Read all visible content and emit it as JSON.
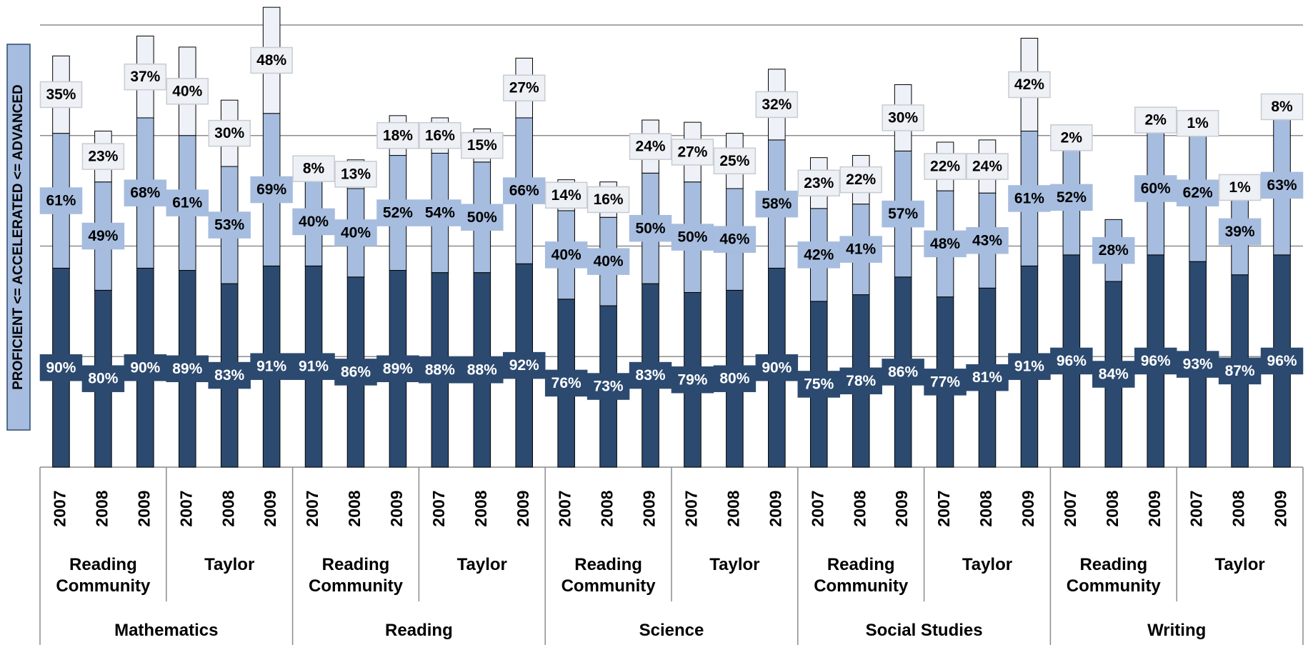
{
  "chart_data": {
    "type": "stacked_bar",
    "ylabel": "PROFICIENT <= ACCELERATED <= ADVANCED",
    "categories": [
      "2007",
      "2008",
      "2009",
      "2007",
      "2008",
      "2009",
      "2007",
      "2008",
      "2009",
      "2007",
      "2008",
      "2009",
      "2007",
      "2008",
      "2009",
      "2007",
      "2008",
      "2009",
      "2007",
      "2008",
      "2009",
      "2007",
      "2008",
      "2009",
      "2007",
      "2008",
      "2009",
      "2007",
      "2008",
      "2009"
    ],
    "school_groups": [
      "Reading Community",
      "Taylor",
      "Reading Community",
      "Taylor",
      "Reading Community",
      "Taylor",
      "Reading Community",
      "Taylor",
      "Reading Community",
      "Taylor"
    ],
    "subject_groups": [
      "Mathematics",
      "Reading",
      "Science",
      "Social Studies",
      "Writing"
    ],
    "series": [
      {
        "color": "#2c4a70",
        "values": [
          90,
          80,
          90,
          89,
          83,
          91,
          91,
          86,
          89,
          88,
          88,
          92,
          76,
          73,
          83,
          79,
          80,
          90,
          75,
          78,
          86,
          77,
          81,
          91,
          96,
          84,
          96,
          93,
          87,
          96
        ],
        "value_labels": [
          "90%",
          "80%",
          "90%",
          "89%",
          "83%",
          "91%",
          "91%",
          "86%",
          "89%",
          "88%",
          "88%",
          "92%",
          "76%",
          "73%",
          "83%",
          "79%",
          "80%",
          "90%",
          "75%",
          "78%",
          "86%",
          "77%",
          "81%",
          "91%",
          "96%",
          "84%",
          "96%",
          "93%",
          "87%",
          "96%"
        ]
      },
      {
        "color": "#a6bddf",
        "values": [
          61,
          49,
          68,
          61,
          53,
          69,
          40,
          40,
          52,
          54,
          50,
          66,
          40,
          40,
          50,
          50,
          46,
          58,
          42,
          41,
          57,
          48,
          43,
          61,
          52,
          28,
          60,
          62,
          39,
          63
        ],
        "value_labels": [
          "61%",
          "49%",
          "68%",
          "61%",
          "53%",
          "69%",
          "40%",
          "40%",
          "52%",
          "54%",
          "50%",
          "66%",
          "40%",
          "40%",
          "50%",
          "50%",
          "46%",
          "58%",
          "42%",
          "41%",
          "57%",
          "48%",
          "43%",
          "61%",
          "52%",
          "28%",
          "60%",
          "62%",
          "39%",
          "63%"
        ]
      },
      {
        "color": "#eef2f8",
        "values": [
          35,
          23,
          37,
          40,
          30,
          48,
          8,
          13,
          18,
          16,
          15,
          27,
          14,
          16,
          24,
          27,
          25,
          32,
          23,
          22,
          30,
          22,
          24,
          42,
          2,
          null,
          2,
          1,
          1,
          8
        ],
        "value_labels": [
          "35%",
          "23%",
          "37%",
          "40%",
          "30%",
          "48%",
          "8%",
          "13%",
          "18%",
          "16%",
          "15%",
          "27%",
          "14%",
          "16%",
          "24%",
          "27%",
          "25%",
          "32%",
          "23%",
          "22%",
          "30%",
          "22%",
          "24%",
          "42%",
          "2%",
          null,
          "2%",
          "1%",
          "1%",
          "8%"
        ]
      }
    ],
    "ylim": [
      0,
      210
    ],
    "yticks": [
      50,
      100,
      150,
      200
    ],
    "grid": true
  }
}
